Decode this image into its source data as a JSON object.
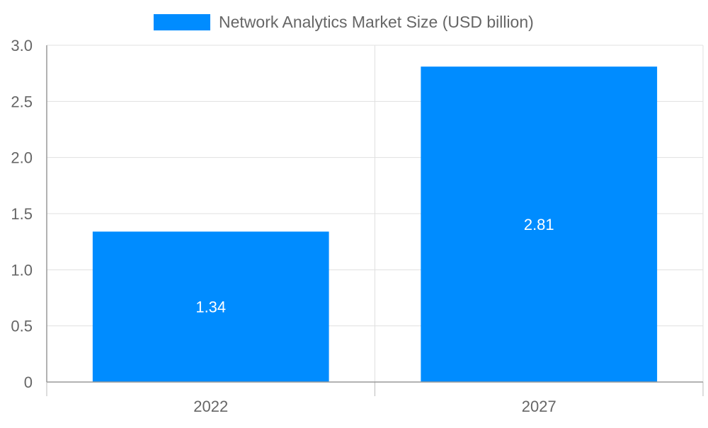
{
  "chart_data": {
    "type": "bar",
    "categories": [
      "2022",
      "2027"
    ],
    "series": [
      {
        "name": "Network Analytics Market Size (USD billion)",
        "values": [
          1.34,
          2.81
        ],
        "color": "#008CFF"
      }
    ],
    "data_labels": [
      "1.34",
      "2.81"
    ],
    "yticks": [
      "0",
      "0.5",
      "1.0",
      "1.5",
      "2.0",
      "2.5",
      "3.0"
    ],
    "ylim": [
      0,
      3.0
    ],
    "grid": true,
    "legend_position": "top"
  }
}
